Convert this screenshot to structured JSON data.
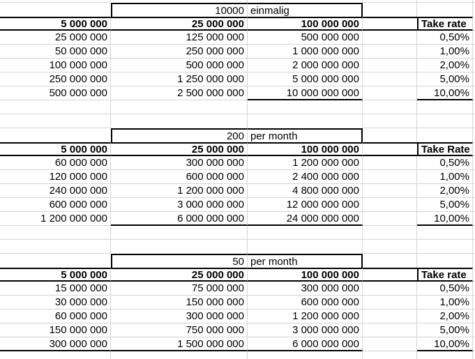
{
  "sheet": {
    "background_color": "#ffffff",
    "gridline_color": "#d4d4d4",
    "table_border_color": "#000000",
    "text_color": "#000000"
  },
  "tables": [
    {
      "title_value": "10000",
      "title_label": "einmalig",
      "headers": [
        "5 000 000",
        "25 000 000",
        "100 000 000",
        "",
        "Take rate"
      ],
      "rows": [
        [
          "25 000 000",
          "125 000 000",
          "500 000 000",
          "",
          "0,50%"
        ],
        [
          "50 000 000",
          "250 000 000",
          "1 000 000 000",
          "",
          "1,00%"
        ],
        [
          "100 000 000",
          "500 000 000",
          "2 000 000 000",
          "",
          "2,00%"
        ],
        [
          "250 000 000",
          "1 250 000 000",
          "5 000 000 000",
          "",
          "5,00%"
        ],
        [
          "500 000 000",
          "2 500 000 000",
          "10 000 000 000",
          "",
          "10,00%"
        ]
      ]
    },
    {
      "title_value": "200",
      "title_label": "per month",
      "headers": [
        "5 000 000",
        "25 000 000",
        "100 000 000",
        "",
        "Take Rate"
      ],
      "rows": [
        [
          "60 000 000",
          "300 000 000",
          "1 200 000 000",
          "",
          "0,50%"
        ],
        [
          "120 000 000",
          "600 000 000",
          "2 400 000 000",
          "",
          "1,00%"
        ],
        [
          "240 000 000",
          "1 200 000 000",
          "4 800 000 000",
          "",
          "2,00%"
        ],
        [
          "600 000 000",
          "3 000 000 000",
          "12 000 000 000",
          "",
          "5,00%"
        ],
        [
          "1 200 000 000",
          "6 000 000 000",
          "24 000 000 000",
          "",
          "10,00%"
        ]
      ]
    },
    {
      "title_value": "50",
      "title_label": "per month",
      "headers": [
        "5 000 000",
        "25 000 000",
        "100 000 000",
        "",
        "Take rate"
      ],
      "rows": [
        [
          "15 000 000",
          "75 000 000",
          "300 000 000",
          "",
          "0,50%"
        ],
        [
          "30 000 000",
          "150 000 000",
          "600 000 000",
          "",
          "1,00%"
        ],
        [
          "60 000 000",
          "300 000 000",
          "1 200 000 000",
          "",
          "2,00%"
        ],
        [
          "150 000 000",
          "750 000 000",
          "3 000 000 000",
          "",
          "5,00%"
        ],
        [
          "300 000 000",
          "1 500 000 000",
          "6 000 000 000",
          "",
          "10,00%"
        ]
      ]
    }
  ]
}
